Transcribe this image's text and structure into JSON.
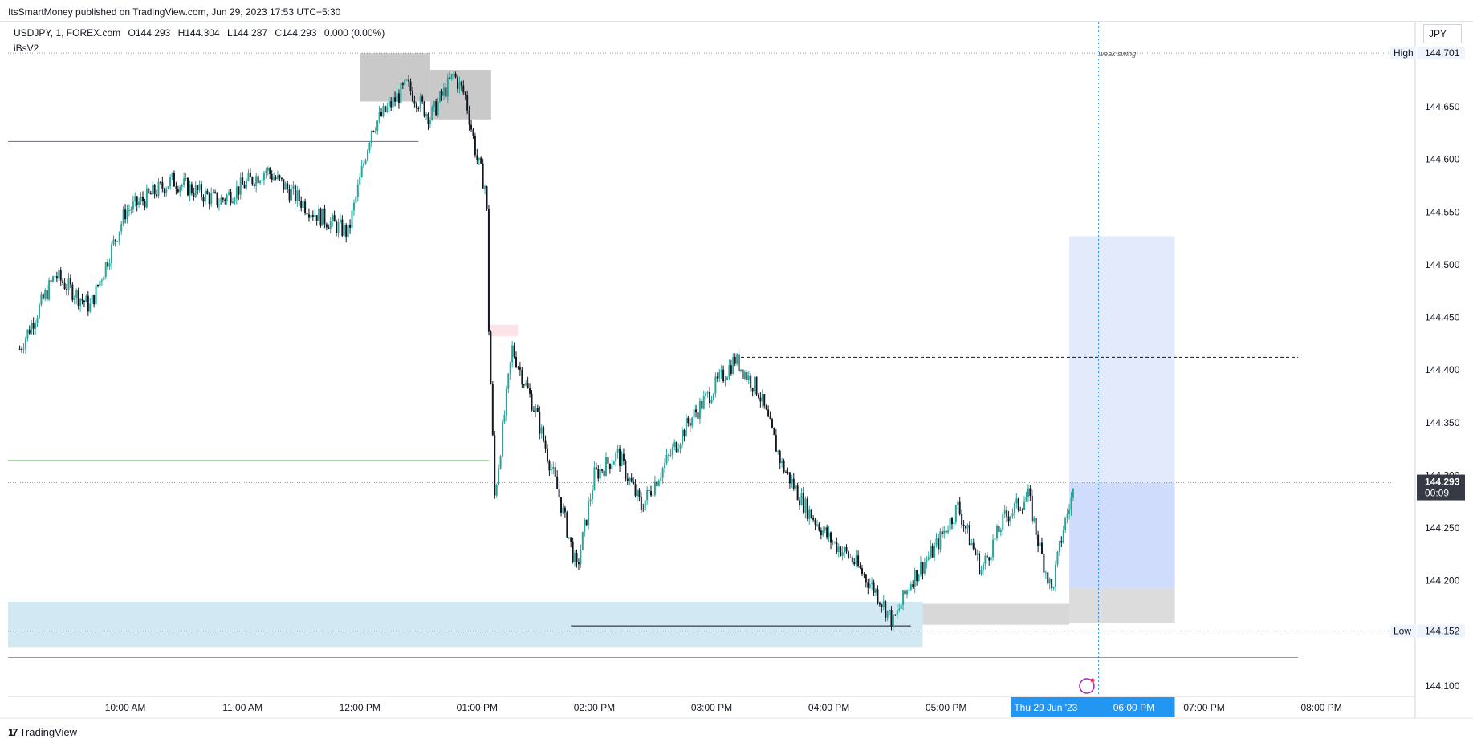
{
  "header": {
    "published": "ItsSmartMoney published on TradingView.com, Jun 29, 2023 17:53 UTC+5:30"
  },
  "legend": {
    "symbol": "USDJPY, 1, FOREX.com",
    "open_label": "O",
    "open": "144.293",
    "high_label": "H",
    "high": "144.304",
    "low_label": "L",
    "low": "144.287",
    "close_label": "C",
    "close": "144.293",
    "change": "0.000 (0.00%)",
    "indicator": "iBsV2"
  },
  "currency": "JPY",
  "footer": {
    "brand": "TradingView"
  },
  "colors": {
    "bull": "#26a69a",
    "bear": "#131722",
    "crosshair": "#2196f3",
    "blue_zone": "#d2e9f3",
    "target_zone": "#e3eafc",
    "gray_zone": "#c9c9c9",
    "current_price_bg": "#363a45",
    "time_highlight": "#2196f3"
  },
  "chart_data": {
    "type": "candlestick",
    "symbol": "USDJPY",
    "interval": "1",
    "ylim": [
      144.09,
      144.73
    ],
    "x_tick_labels": [
      "10:00 AM",
      "11:00 AM",
      "12:00 PM",
      "01:00 PM",
      "02:00 PM",
      "03:00 PM",
      "04:00 PM",
      "05:00 PM",
      "Thu 29 Jun '23",
      "06:00 PM",
      "07:00 PM",
      "08:00 PM"
    ],
    "y_tick_labels": [
      "144.650",
      "144.600",
      "144.550",
      "144.500",
      "144.450",
      "144.400",
      "144.350",
      "144.300",
      "144.250",
      "144.200",
      "144.100"
    ],
    "high_label": "High",
    "high_value": "144.701",
    "low_label": "Low",
    "low_value": "144.152",
    "current_price": "144.293",
    "countdown": "00:09",
    "annotation": "weak swing",
    "price_path": [
      [
        9.1,
        144.42
      ],
      [
        9.4,
        144.49
      ],
      [
        9.7,
        144.46
      ],
      [
        10.0,
        144.55
      ],
      [
        10.4,
        144.58
      ],
      [
        10.8,
        144.56
      ],
      [
        11.2,
        144.59
      ],
      [
        11.6,
        144.55
      ],
      [
        11.9,
        144.53
      ],
      [
        12.1,
        144.63
      ],
      [
        12.4,
        144.67
      ],
      [
        12.6,
        144.64
      ],
      [
        12.8,
        144.68
      ],
      [
        12.9,
        144.66
      ],
      [
        13.0,
        144.6
      ],
      [
        13.08,
        144.57
      ],
      [
        13.1,
        144.44
      ],
      [
        13.15,
        144.28
      ],
      [
        13.3,
        144.42
      ],
      [
        13.5,
        144.36
      ],
      [
        13.7,
        144.28
      ],
      [
        13.85,
        144.21
      ],
      [
        14.0,
        144.3
      ],
      [
        14.2,
        144.32
      ],
      [
        14.4,
        144.27
      ],
      [
        14.6,
        144.31
      ],
      [
        14.8,
        144.35
      ],
      [
        15.0,
        144.38
      ],
      [
        15.2,
        144.41
      ],
      [
        15.4,
        144.38
      ],
      [
        15.6,
        144.31
      ],
      [
        15.8,
        144.27
      ],
      [
        16.0,
        144.24
      ],
      [
        16.2,
        144.22
      ],
      [
        16.4,
        144.19
      ],
      [
        16.55,
        144.16
      ],
      [
        16.7,
        144.2
      ],
      [
        16.9,
        144.23
      ],
      [
        17.1,
        144.27
      ],
      [
        17.3,
        144.21
      ],
      [
        17.5,
        144.26
      ],
      [
        17.7,
        144.28
      ],
      [
        17.8,
        144.23
      ],
      [
        17.9,
        144.19
      ],
      [
        18.0,
        144.25
      ],
      [
        18.1,
        144.29
      ]
    ],
    "zones": [
      {
        "name": "demand-zone",
        "x": [
          9.0,
          16.8
        ],
        "y": [
          144.137,
          144.18
        ]
      },
      {
        "name": "supply-zone-top",
        "x": [
          12.0,
          12.6
        ],
        "y": [
          144.655,
          144.701
        ]
      },
      {
        "name": "supply-zone-right",
        "x": [
          12.6,
          13.12
        ],
        "y": [
          144.638,
          144.685
        ]
      },
      {
        "name": "fvg-pink",
        "x": [
          13.1,
          13.35
        ],
        "y": [
          144.432,
          144.443
        ]
      },
      {
        "name": "position-target",
        "x": [
          18.05,
          18.95
        ],
        "y": [
          144.293,
          144.527
        ]
      },
      {
        "name": "position-profit",
        "x": [
          18.05,
          18.95
        ],
        "y": [
          144.193,
          144.293
        ]
      },
      {
        "name": "position-stop",
        "x": [
          18.05,
          18.95
        ],
        "y": [
          144.16,
          144.193
        ]
      },
      {
        "name": "gray-zone-bottom",
        "x": [
          16.8,
          18.05
        ],
        "y": [
          144.158,
          144.178
        ]
      }
    ],
    "levels": [
      {
        "name": "high-line",
        "y": 144.701,
        "x": [
          9.0,
          20.8
        ]
      },
      {
        "name": "swing-level",
        "y": 144.617,
        "x": [
          9.0,
          12.5
        ]
      },
      {
        "name": "green-level",
        "y": 144.314,
        "x": [
          9.0,
          13.1
        ]
      },
      {
        "name": "current-price-line",
        "y": 144.293,
        "x": [
          9.0,
          20.8
        ]
      },
      {
        "name": "dashed-level",
        "y": 144.412,
        "x": [
          15.25,
          20.0
        ]
      },
      {
        "name": "low-line",
        "y": 144.152,
        "x": [
          9.0,
          20.8
        ]
      },
      {
        "name": "low-sweep-line",
        "y": 144.157,
        "x": [
          13.8,
          16.7
        ]
      },
      {
        "name": "bottom-line",
        "y": 144.127,
        "x": [
          9.0,
          20.0
        ]
      }
    ]
  }
}
